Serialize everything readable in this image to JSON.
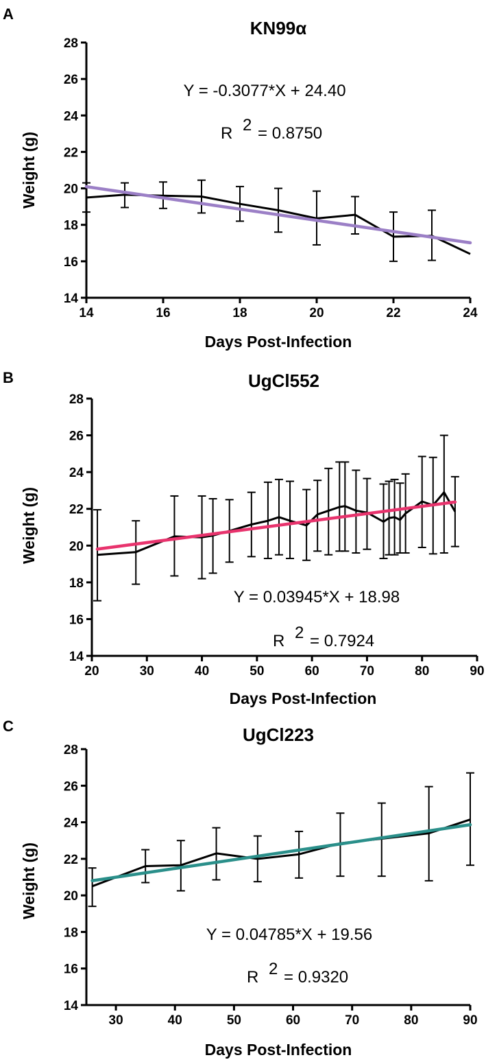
{
  "chart_data": [
    {
      "type": "line",
      "panel_label": "A",
      "title": "KN99α",
      "xlabel": "Days Post-Infection",
      "ylabel": "Weight (g)",
      "xlim": [
        14,
        24
      ],
      "ylim": [
        14,
        28
      ],
      "xticks": [
        14,
        16,
        18,
        20,
        22,
        24
      ],
      "yticks": [
        14,
        16,
        18,
        20,
        22,
        24,
        26,
        28
      ],
      "x": [
        14,
        15,
        16,
        17,
        18,
        19,
        20,
        21,
        22,
        23,
        24
      ],
      "mean": [
        19.5,
        19.65,
        19.6,
        19.55,
        19.15,
        18.8,
        18.35,
        18.55,
        17.35,
        17.4,
        16.4
      ],
      "err_low": [
        18.7,
        18.95,
        18.9,
        18.65,
        18.2,
        17.6,
        16.9,
        17.5,
        16.0,
        16.05,
        null
      ],
      "err_high": [
        20.3,
        20.3,
        20.35,
        20.45,
        20.1,
        20.0,
        19.85,
        19.55,
        18.7,
        18.8,
        null
      ],
      "fit": {
        "slope": -0.3077,
        "intercept": 24.4,
        "x_start": 14,
        "x_end": 24,
        "color": "#9b7fc6"
      },
      "equation": "Y = -0.3077*X + 24.40",
      "r_prefix": "R",
      "r_sup": "2",
      "r_value": "= 0.8750"
    },
    {
      "type": "line",
      "panel_label": "B",
      "title": "UgCl552",
      "xlabel": "Days Post-Infection",
      "ylabel": "Weight (g)",
      "xlim": [
        20,
        90
      ],
      "ylim": [
        14,
        28
      ],
      "xticks": [
        20,
        30,
        40,
        50,
        60,
        70,
        80,
        90
      ],
      "yticks": [
        14,
        16,
        18,
        20,
        22,
        24,
        26,
        28
      ],
      "x": [
        21,
        28,
        35,
        40,
        42,
        45,
        49,
        52,
        54,
        56,
        59,
        61,
        63,
        65,
        66,
        68,
        70,
        73,
        74,
        75,
        76,
        77,
        80,
        82,
        84,
        86
      ],
      "mean": [
        19.5,
        19.65,
        20.5,
        20.45,
        20.55,
        20.8,
        21.15,
        21.35,
        21.55,
        21.35,
        21.1,
        21.7,
        21.9,
        22.1,
        22.15,
        21.9,
        21.8,
        21.3,
        21.5,
        21.55,
        21.4,
        21.75,
        22.4,
        22.2,
        22.9,
        21.85
      ],
      "err_low": [
        17.0,
        17.9,
        18.35,
        18.2,
        18.5,
        19.1,
        19.4,
        19.3,
        19.5,
        19.3,
        19.2,
        19.7,
        19.5,
        19.7,
        19.7,
        19.6,
        19.8,
        19.3,
        19.5,
        19.5,
        19.6,
        19.6,
        19.9,
        19.55,
        19.6,
        19.95
      ],
      "err_high": [
        21.95,
        21.35,
        22.7,
        22.7,
        22.55,
        22.5,
        22.9,
        23.45,
        23.6,
        23.5,
        23.05,
        23.55,
        24.2,
        24.55,
        24.55,
        24.1,
        23.65,
        23.35,
        23.5,
        23.6,
        23.4,
        23.9,
        24.85,
        24.8,
        26.0,
        23.75
      ],
      "fit": {
        "slope": 0.03945,
        "intercept": 18.98,
        "x_start": 21,
        "x_end": 86,
        "color": "#e8336d"
      },
      "equation": "Y = 0.03945*X + 18.98",
      "r_prefix": "R",
      "r_sup": "2",
      "r_value": "= 0.7924"
    },
    {
      "type": "line",
      "panel_label": "C",
      "title": "UgCl223",
      "xlabel": "Days Post-Infection",
      "ylabel": "Weight (g)",
      "xlim": [
        25,
        90
      ],
      "ylim": [
        14,
        28
      ],
      "xticks": [
        30,
        40,
        50,
        60,
        70,
        80,
        90
      ],
      "yticks": [
        14,
        16,
        18,
        20,
        22,
        24,
        26,
        28
      ],
      "x": [
        26,
        35,
        41,
        47,
        54,
        61,
        68,
        75,
        83,
        90
      ],
      "mean": [
        20.5,
        21.6,
        21.65,
        22.3,
        22.0,
        22.25,
        22.85,
        23.1,
        23.4,
        24.15
      ],
      "err_low": [
        19.4,
        20.7,
        20.25,
        20.85,
        20.75,
        20.95,
        21.05,
        21.05,
        20.8,
        21.65
      ],
      "err_high": [
        21.5,
        22.5,
        23.0,
        23.7,
        23.25,
        23.5,
        24.5,
        25.05,
        25.95,
        26.7
      ],
      "fit": {
        "slope": 0.04785,
        "intercept": 19.56,
        "x_start": 26,
        "x_end": 90,
        "color": "#2a8f8a"
      },
      "equation": "Y = 0.04785*X + 19.56",
      "r_prefix": "R",
      "r_sup": "2",
      "r_value": "= 0.9320"
    }
  ]
}
